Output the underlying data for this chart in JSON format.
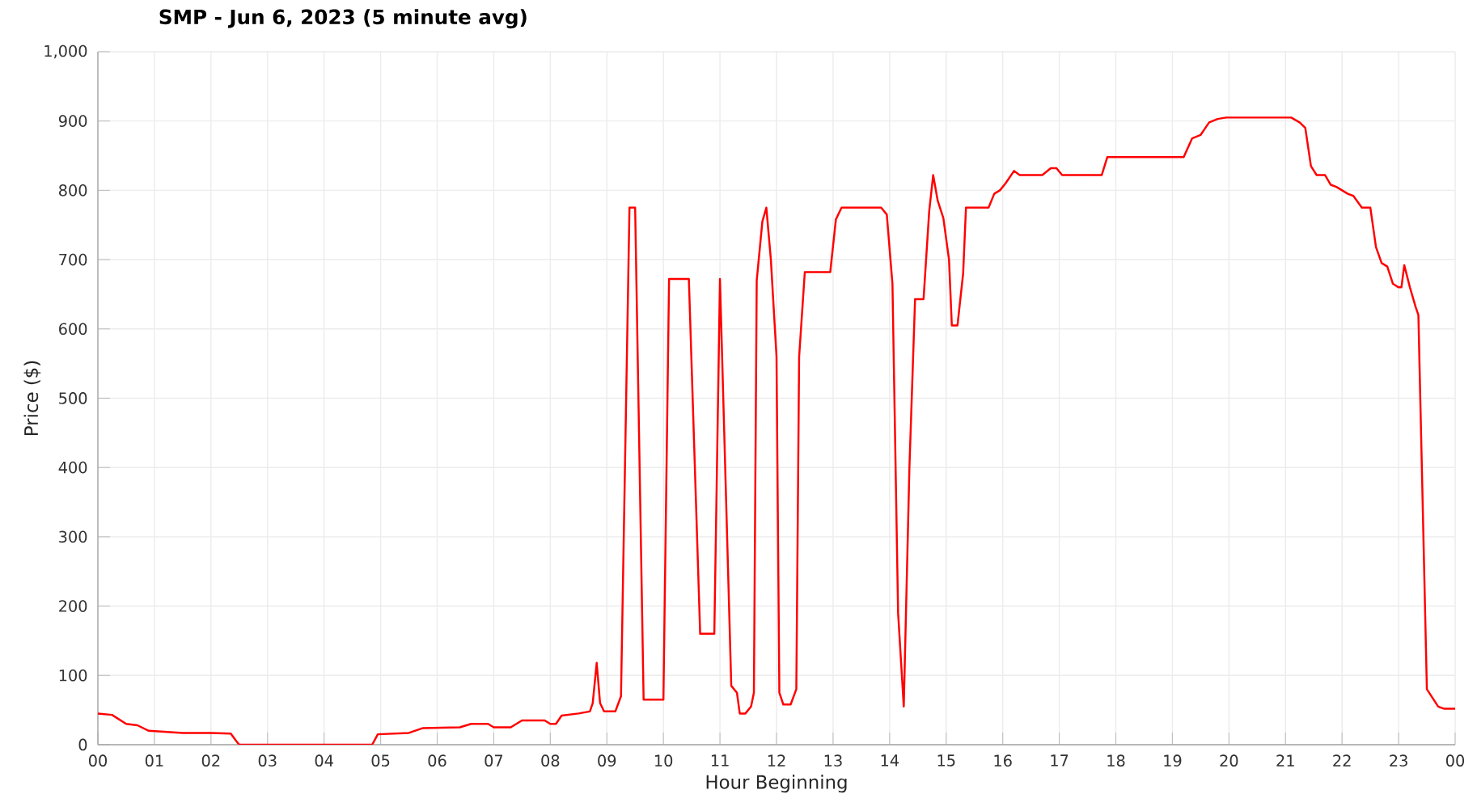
{
  "chart_data": {
    "type": "line",
    "title": "SMP - Jun 6, 2023 (5 minute avg)",
    "xlabel": "Hour Beginning",
    "ylabel": "Price ($)",
    "x": [
      0,
      0.25,
      0.5,
      0.7,
      0.9,
      1.5,
      2.0,
      2.35,
      2.45,
      2.5,
      4.85,
      4.95,
      5.5,
      5.75,
      6.4,
      6.6,
      6.9,
      7.0,
      7.3,
      7.5,
      7.9,
      8.0,
      8.1,
      8.2,
      8.5,
      8.7,
      8.75,
      8.82,
      8.88,
      8.95,
      9.15,
      9.25,
      9.4,
      9.5,
      9.65,
      10.0,
      10.1,
      10.45,
      10.65,
      10.9,
      11.0,
      11.2,
      11.3,
      11.35,
      11.45,
      11.55,
      11.6,
      11.65,
      11.75,
      11.82,
      11.9,
      12.0,
      12.05,
      12.12,
      12.25,
      12.35,
      12.4,
      12.5,
      12.95,
      13.05,
      13.15,
      13.85,
      13.95,
      14.05,
      14.15,
      14.25,
      14.35,
      14.45,
      14.6,
      14.7,
      14.77,
      14.85,
      14.95,
      15.05,
      15.1,
      15.2,
      15.3,
      15.35,
      15.75,
      15.85,
      15.95,
      16.05,
      16.2,
      16.3,
      16.7,
      16.85,
      16.95,
      17.05,
      17.75,
      17.85,
      19.2,
      19.35,
      19.5,
      19.65,
      19.8,
      19.95,
      21.1,
      21.25,
      21.35,
      21.45,
      21.55,
      21.7,
      21.8,
      21.9,
      22.1,
      22.2,
      22.35,
      22.5,
      22.6,
      22.7,
      22.8,
      22.9,
      23.0,
      23.05,
      23.1,
      23.2,
      23.3,
      23.35,
      23.5,
      23.7,
      23.8,
      24.0
    ],
    "series": [
      {
        "color": "#ff0000",
        "values": [
          45,
          43,
          30,
          28,
          20,
          17,
          17,
          16,
          5,
          0,
          0,
          15,
          17,
          24,
          25,
          30,
          30,
          25,
          25,
          35,
          35,
          30,
          30,
          42,
          45,
          48,
          60,
          118,
          60,
          48,
          48,
          70,
          775,
          775,
          65,
          65,
          672,
          672,
          160,
          160,
          672,
          85,
          75,
          45,
          45,
          55,
          75,
          670,
          755,
          775,
          700,
          560,
          75,
          58,
          58,
          80,
          560,
          682,
          682,
          758,
          775,
          775,
          765,
          665,
          190,
          55,
          400,
          643,
          643,
          770,
          822,
          785,
          760,
          700,
          605,
          605,
          680,
          775,
          775,
          795,
          800,
          810,
          828,
          822,
          822,
          832,
          832,
          822,
          822,
          848,
          848,
          875,
          880,
          898,
          903,
          905,
          905,
          898,
          890,
          835,
          822,
          822,
          808,
          805,
          795,
          792,
          775,
          775,
          718,
          695,
          690,
          665,
          660,
          660,
          692,
          660,
          632,
          620,
          80,
          55,
          52,
          52
        ]
      }
    ],
    "xlim": [
      0,
      24
    ],
    "ylim": [
      0,
      1000
    ],
    "xticks": [
      {
        "value": 0,
        "label": "00"
      },
      {
        "value": 1,
        "label": "01"
      },
      {
        "value": 2,
        "label": "02"
      },
      {
        "value": 3,
        "label": "03"
      },
      {
        "value": 4,
        "label": "04"
      },
      {
        "value": 5,
        "label": "05"
      },
      {
        "value": 6,
        "label": "06"
      },
      {
        "value": 7,
        "label": "07"
      },
      {
        "value": 8,
        "label": "08"
      },
      {
        "value": 9,
        "label": "09"
      },
      {
        "value": 10,
        "label": "10"
      },
      {
        "value": 11,
        "label": "11"
      },
      {
        "value": 12,
        "label": "12"
      },
      {
        "value": 13,
        "label": "13"
      },
      {
        "value": 14,
        "label": "14"
      },
      {
        "value": 15,
        "label": "15"
      },
      {
        "value": 16,
        "label": "16"
      },
      {
        "value": 17,
        "label": "17"
      },
      {
        "value": 18,
        "label": "18"
      },
      {
        "value": 19,
        "label": "19"
      },
      {
        "value": 20,
        "label": "20"
      },
      {
        "value": 21,
        "label": "21"
      },
      {
        "value": 22,
        "label": "22"
      },
      {
        "value": 23,
        "label": "23"
      },
      {
        "value": 24,
        "label": "00"
      }
    ],
    "yticks": [
      0,
      100,
      200,
      300,
      400,
      500,
      600,
      700,
      800,
      900,
      {
        "value": 1000,
        "label": "1,000"
      }
    ],
    "grid": true,
    "line_style": "solid"
  }
}
